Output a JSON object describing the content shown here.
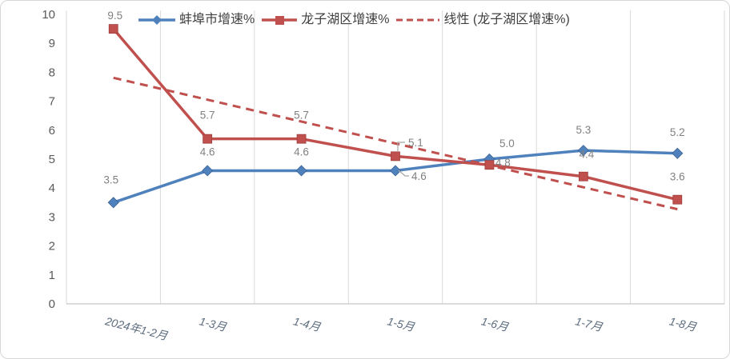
{
  "chart_data": {
    "type": "line",
    "categories": [
      "2024年1-2月",
      "1-3月",
      "1-4月",
      "1-5月",
      "1-6月",
      "1-7月",
      "1-8月"
    ],
    "series": [
      {
        "name": "蚌埠市增速%",
        "color": "#4F81BD",
        "marker": "diamond",
        "values": [
          3.5,
          4.6,
          4.6,
          4.6,
          5.0,
          5.3,
          5.2
        ],
        "labels": [
          "3.5",
          "4.6",
          "4.6",
          "4.6",
          "5.0",
          "5.3",
          "5.2"
        ]
      },
      {
        "name": "龙子湖区增速%",
        "color": "#C0504D",
        "marker": "square",
        "values": [
          9.5,
          5.7,
          5.7,
          5.1,
          4.8,
          4.4,
          3.6
        ],
        "labels": [
          "9.5",
          "5.7",
          "5.7",
          "5.1",
          "4.8",
          "4.4",
          "3.6"
        ]
      }
    ],
    "trendline": {
      "name": "线性 (龙子湖区增速%)",
      "based_on": "龙子湖区增速%",
      "color": "#C0504D",
      "dashed": true,
      "start_value": 7.81,
      "end_value": 3.27
    },
    "y_axis": {
      "min": 0,
      "max": 10,
      "step": 1,
      "tick_labels": [
        "0",
        "1",
        "2",
        "3",
        "4",
        "5",
        "6",
        "7",
        "8",
        "9",
        "10"
      ]
    },
    "legend": {
      "position": "top",
      "entries": [
        "蚌埠市增速%",
        "龙子湖区增速%",
        "线性 (龙子湖区增速%)"
      ]
    },
    "grid": {
      "vertical": true,
      "horizontal": false
    },
    "colors": {
      "gridline": "#D9D9D9",
      "axis_line": "#C6C6C6",
      "data_label": "#808080",
      "y_tick_text": "#595959",
      "x_tick_text": "#5B6B7E",
      "legend_text": "#404040",
      "leader_line": "#A6A6A6",
      "series_blue": "#4F81BD",
      "series_red": "#C0504D"
    }
  }
}
